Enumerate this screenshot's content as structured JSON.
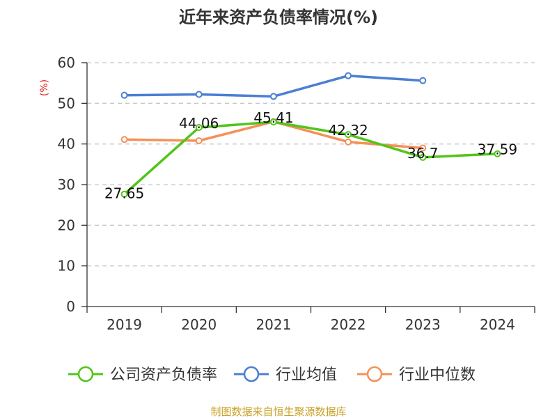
{
  "chart_data": {
    "type": "line",
    "title": "近年来资产负债率情况(%)",
    "ylabel": "(%)",
    "categories": [
      "2019",
      "2020",
      "2021",
      "2022",
      "2023",
      "2024"
    ],
    "ylim": [
      0,
      60
    ],
    "yticks": [
      0,
      10,
      20,
      30,
      40,
      50,
      60
    ],
    "grid": true,
    "legend_position": "bottom",
    "series": [
      {
        "name": "公司资产负债率",
        "color": "#52c41a",
        "values": [
          27.65,
          44.06,
          45.41,
          42.32,
          36.7,
          37.59
        ],
        "labels": [
          "27.65",
          "44.06",
          "45.41",
          "42.32",
          "36.7",
          "37.59"
        ]
      },
      {
        "name": "行业均值",
        "color": "#4a7fd4",
        "values": [
          52.0,
          52.2,
          51.7,
          56.8,
          55.6,
          null
        ]
      },
      {
        "name": "行业中位数",
        "color": "#f59057",
        "values": [
          41.1,
          40.8,
          45.5,
          40.5,
          39.0,
          null
        ]
      }
    ],
    "source": "制图数据来自恒生聚源数据库"
  }
}
